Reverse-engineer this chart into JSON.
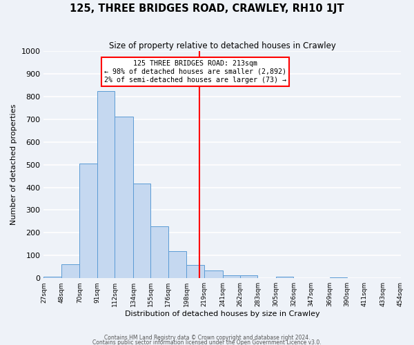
{
  "title": "125, THREE BRIDGES ROAD, CRAWLEY, RH10 1JT",
  "subtitle": "Size of property relative to detached houses in Crawley",
  "xlabel": "Distribution of detached houses by size in Crawley",
  "ylabel": "Number of detached properties",
  "bin_edges": [
    27,
    48,
    70,
    91,
    112,
    134,
    155,
    176,
    198,
    219,
    241,
    262,
    283,
    305,
    326,
    347,
    369,
    390,
    411,
    433,
    454
  ],
  "bin_labels": [
    "27sqm",
    "48sqm",
    "70sqm",
    "91sqm",
    "112sqm",
    "134sqm",
    "155sqm",
    "176sqm",
    "198sqm",
    "219sqm",
    "241sqm",
    "262sqm",
    "283sqm",
    "305sqm",
    "326sqm",
    "347sqm",
    "369sqm",
    "390sqm",
    "411sqm",
    "433sqm",
    "454sqm"
  ],
  "bar_heights": [
    8,
    60,
    505,
    825,
    713,
    418,
    230,
    118,
    58,
    33,
    12,
    12,
    0,
    8,
    0,
    0,
    5,
    0,
    0,
    0
  ],
  "bar_color": "#c5d8f0",
  "bar_edge_color": "#5b9bd5",
  "vline_x": 213,
  "vline_color": "red",
  "annotation_title": "125 THREE BRIDGES ROAD: 213sqm",
  "annotation_line1": "← 98% of detached houses are smaller (2,892)",
  "annotation_line2": "2% of semi-detached houses are larger (73) →",
  "annotation_box_color": "white",
  "annotation_box_edge_color": "red",
  "ylim": [
    0,
    1000
  ],
  "yticks": [
    0,
    100,
    200,
    300,
    400,
    500,
    600,
    700,
    800,
    900,
    1000
  ],
  "background_color": "#eef2f8",
  "grid_color": "white",
  "footer1": "Contains HM Land Registry data © Crown copyright and database right 2024.",
  "footer2": "Contains public sector information licensed under the Open Government Licence v3.0."
}
